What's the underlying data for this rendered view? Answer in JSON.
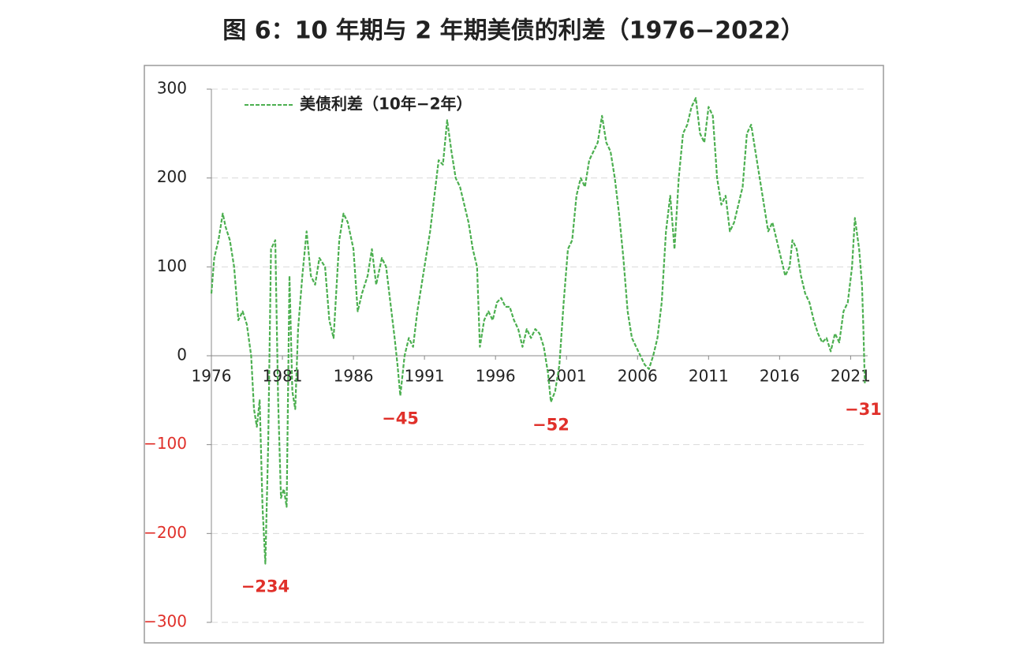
{
  "chart_data": {
    "type": "line",
    "title": "图 6：10 年期与 2 年期美债的利差（1976−2022）",
    "x": [
      1976.0,
      1976.2,
      1976.5,
      1976.8,
      1977.0,
      1977.3,
      1977.6,
      1977.9,
      1978.2,
      1978.5,
      1978.8,
      1979.0,
      1979.2,
      1979.4,
      1979.6,
      1979.8,
      1980.0,
      1980.2,
      1980.5,
      1980.7,
      1980.9,
      1981.1,
      1981.3,
      1981.5,
      1981.7,
      1981.9,
      1982.1,
      1982.4,
      1982.7,
      1983.0,
      1983.3,
      1983.6,
      1984.0,
      1984.3,
      1984.6,
      1985.0,
      1985.3,
      1985.6,
      1986.0,
      1986.3,
      1986.6,
      1987.0,
      1987.3,
      1987.6,
      1988.0,
      1988.3,
      1988.6,
      1988.9,
      1989.1,
      1989.3,
      1989.6,
      1989.9,
      1990.2,
      1990.5,
      1990.8,
      1991.1,
      1991.4,
      1991.7,
      1992.0,
      1992.3,
      1992.6,
      1992.9,
      1993.2,
      1993.5,
      1993.8,
      1994.1,
      1994.4,
      1994.7,
      1994.9,
      1995.2,
      1995.5,
      1995.8,
      1996.1,
      1996.4,
      1996.7,
      1997.0,
      1997.3,
      1997.6,
      1997.9,
      1998.2,
      1998.5,
      1998.8,
      1999.1,
      1999.4,
      1999.7,
      1999.9,
      2000.2,
      2000.5,
      2000.8,
      2001.1,
      2001.4,
      2001.7,
      2002.0,
      2002.3,
      2002.6,
      2002.9,
      2003.2,
      2003.5,
      2003.8,
      2004.1,
      2004.4,
      2004.7,
      2005.0,
      2005.3,
      2005.6,
      2005.9,
      2006.2,
      2006.5,
      2006.8,
      2007.1,
      2007.4,
      2007.7,
      2008.0,
      2008.3,
      2008.6,
      2008.9,
      2009.2,
      2009.5,
      2009.8,
      2010.1,
      2010.4,
      2010.7,
      2011.0,
      2011.3,
      2011.6,
      2011.9,
      2012.2,
      2012.5,
      2012.8,
      2013.1,
      2013.4,
      2013.7,
      2014.0,
      2014.3,
      2014.6,
      2014.9,
      2015.2,
      2015.5,
      2015.8,
      2016.1,
      2016.4,
      2016.7,
      2016.9,
      2017.2,
      2017.5,
      2017.8,
      2018.1,
      2018.4,
      2018.7,
      2019.0,
      2019.3,
      2019.6,
      2019.9,
      2020.2,
      2020.5,
      2020.8,
      2021.1,
      2021.3,
      2021.6,
      2021.8,
      2021.9,
      2022.0
    ],
    "series": [
      {
        "name": "美债利差（10年−2年）",
        "color": "#4caf50",
        "values": [
          70,
          110,
          130,
          160,
          145,
          130,
          100,
          40,
          50,
          35,
          0,
          -60,
          -80,
          -50,
          -170,
          -234,
          -100,
          120,
          130,
          -50,
          -160,
          -150,
          -170,
          90,
          -40,
          -60,
          30,
          90,
          140,
          90,
          80,
          110,
          100,
          40,
          20,
          130,
          160,
          150,
          120,
          50,
          70,
          90,
          120,
          80,
          110,
          100,
          60,
          20,
          -10,
          -45,
          0,
          20,
          10,
          50,
          80,
          110,
          140,
          180,
          220,
          215,
          265,
          230,
          200,
          190,
          170,
          150,
          120,
          100,
          10,
          40,
          50,
          40,
          60,
          65,
          55,
          55,
          40,
          30,
          10,
          30,
          20,
          30,
          25,
          10,
          -20,
          -52,
          -40,
          -10,
          60,
          120,
          130,
          180,
          200,
          190,
          220,
          230,
          240,
          270,
          240,
          230,
          200,
          160,
          110,
          50,
          20,
          10,
          0,
          -10,
          -15,
          0,
          20,
          60,
          140,
          180,
          120,
          200,
          250,
          260,
          280,
          290,
          250,
          240,
          280,
          270,
          200,
          170,
          180,
          140,
          150,
          170,
          190,
          250,
          260,
          230,
          200,
          170,
          140,
          150,
          130,
          110,
          90,
          100,
          130,
          120,
          90,
          70,
          60,
          40,
          25,
          15,
          20,
          5,
          25,
          15,
          50,
          60,
          100,
          155,
          120,
          80,
          30,
          -31
        ]
      }
    ],
    "xlim": [
      1976,
      2022.2
    ],
    "xticks": [
      1976,
      1981,
      1986,
      1991,
      1996,
      2001,
      2006,
      2011,
      2016,
      2021
    ],
    "ylim": [
      -300,
      300
    ],
    "yticks": [
      300,
      200,
      100,
      0,
      {
        "value": -100,
        "label": "−100"
      },
      {
        "value": -200,
        "label": "−200"
      },
      {
        "value": -300,
        "label": "−300"
      }
    ],
    "grid": true,
    "legend": "top-left",
    "annotations": [
      {
        "label": "−234",
        "x": 1979.8,
        "value": -234
      },
      {
        "label": "−45",
        "x": 1989.3,
        "value": -45
      },
      {
        "label": "−52",
        "x": 1999.9,
        "value": -52
      },
      {
        "label": "−31",
        "x": 2022.0,
        "value": -31
      }
    ]
  }
}
